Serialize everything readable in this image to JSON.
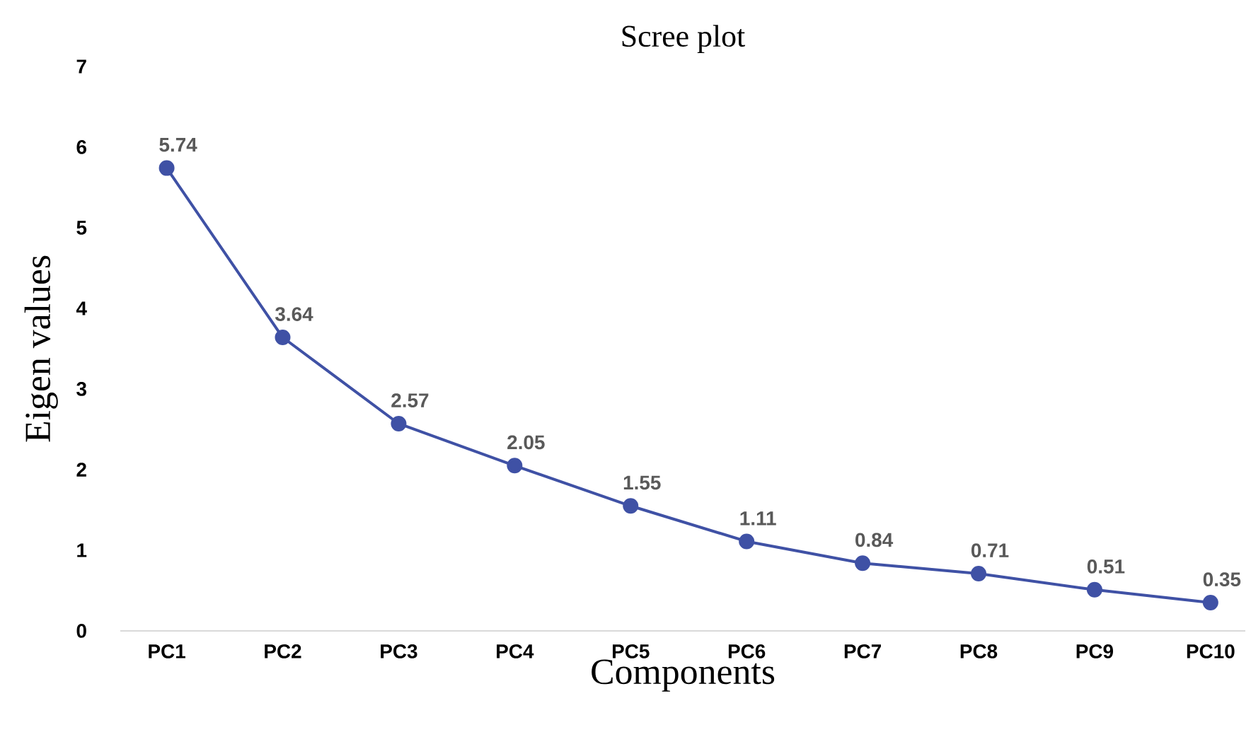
{
  "chart_data": {
    "type": "line",
    "title": "Scree plot",
    "xlabel": "Components",
    "ylabel": "Eigen values",
    "categories": [
      "PC1",
      "PC2",
      "PC3",
      "PC4",
      "PC5",
      "PC6",
      "PC7",
      "PC8",
      "PC9",
      "PC10"
    ],
    "series": [
      {
        "color": "#3f51a5",
        "values": [
          5.74,
          3.64,
          2.57,
          2.05,
          1.55,
          1.11,
          0.84,
          0.71,
          0.51,
          0.35
        ]
      }
    ],
    "ylim": [
      0,
      7
    ],
    "yticks": [
      0,
      1,
      2,
      3,
      4,
      5,
      6,
      7
    ],
    "data_labels": true,
    "marker": "circle",
    "line_style": "solid"
  }
}
